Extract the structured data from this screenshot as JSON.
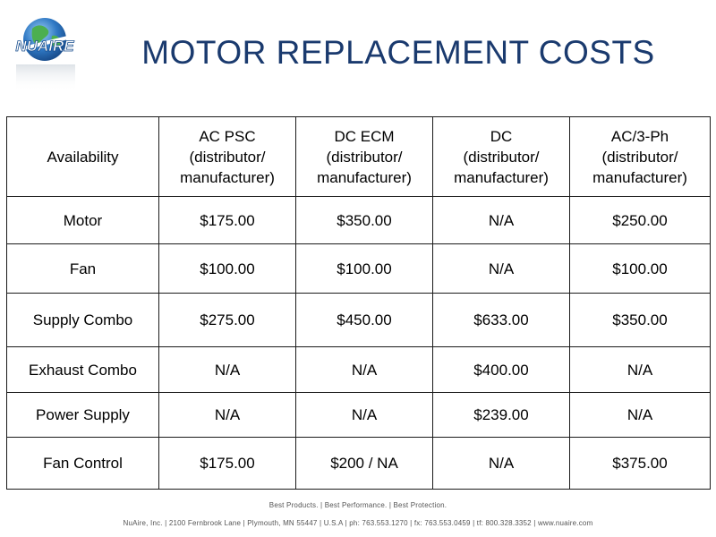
{
  "slide": {
    "title": "MOTOR REPLACEMENT COSTS"
  },
  "logo": {
    "text": "NUAIRE",
    "icon": "globe-logo-icon"
  },
  "table": {
    "corner": "Availability",
    "columns": [
      {
        "name": "AC PSC",
        "sub1": "(distributor/",
        "sub2": "manufacturer)"
      },
      {
        "name": "DC ECM",
        "sub1": "(distributor/",
        "sub2": "manufacturer)"
      },
      {
        "name": "DC",
        "sub1": "(distributor/",
        "sub2": "manufacturer)"
      },
      {
        "name": "AC/3-Ph",
        "sub1": "(distributor/",
        "sub2": "manufacturer)"
      }
    ],
    "rows": [
      {
        "label": "Motor",
        "values": [
          "$175.00",
          "$350.00",
          "N/A",
          "$250.00"
        ]
      },
      {
        "label": "Fan",
        "values": [
          "$100.00",
          "$100.00",
          "N/A",
          "$100.00"
        ]
      },
      {
        "label": "Supply Combo",
        "values": [
          "$275.00",
          "$450.00",
          "$633.00",
          "$350.00"
        ]
      },
      {
        "label": "Exhaust Combo",
        "values": [
          "N/A",
          "N/A",
          "$400.00",
          "N/A"
        ]
      },
      {
        "label": "Power Supply",
        "values": [
          "N/A",
          "N/A",
          "$239.00",
          "N/A"
        ]
      },
      {
        "label": "Fan Control",
        "values": [
          "$175.00",
          "$200 / NA",
          "N/A",
          "$375.00"
        ]
      }
    ]
  },
  "footer": {
    "tagline": "Best Products. | Best Performance. | Best Protection.",
    "address": "NuAire, Inc. | 2100 Fernbrook Lane | Plymouth, MN 55447 | U.S.A | ph: 763.553.1270 | fx: 763.553.0459 | tf: 800.328.3352 | www.nuaire.com"
  },
  "colors": {
    "title": "#1a3a6e",
    "border": "#1a1a1a",
    "globe_blue": "#2f78c4",
    "globe_green": "#4caf50"
  }
}
